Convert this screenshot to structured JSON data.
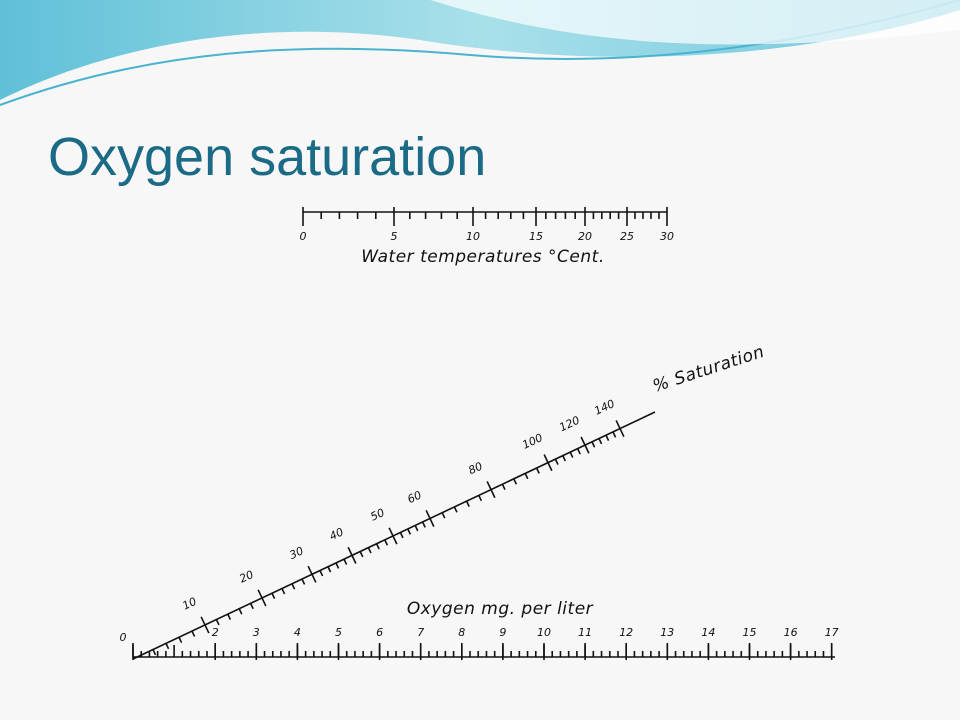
{
  "title": "Oxygen saturation",
  "temperature": {
    "label": "Water temperatures °Cent.",
    "ticks": [
      0,
      5,
      10,
      15,
      20,
      25,
      30
    ]
  },
  "saturation": {
    "label": "% Saturation",
    "ticks": [
      10,
      20,
      30,
      40,
      50,
      60,
      80,
      100,
      120,
      140
    ]
  },
  "oxygen": {
    "label": "Oxygen mg. per liter",
    "ticks": [
      0,
      2,
      3,
      4,
      5,
      6,
      7,
      8,
      9,
      10,
      11,
      12,
      13,
      14,
      15,
      16,
      17
    ]
  }
}
